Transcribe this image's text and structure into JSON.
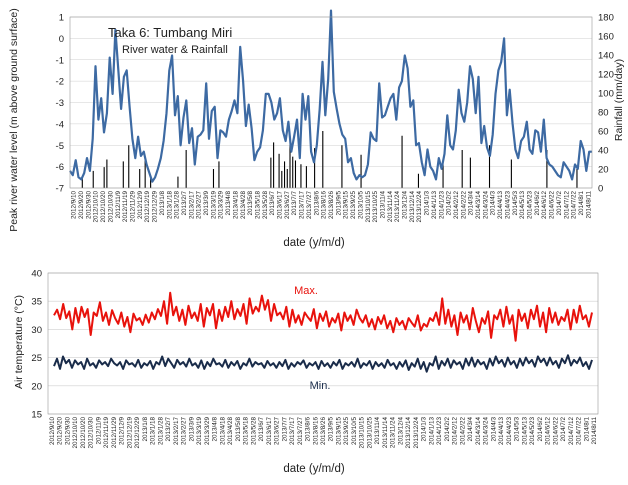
{
  "charts": {
    "top": {
      "title": "Taka 6: Tumbang Miri",
      "subtitle": "River water & Rainfall",
      "ylabel_left": "Peak river water level (m above  ground surface)",
      "ylabel_right": "Rainfall (mm/day)",
      "xlabel": "date (y/m/d)"
    },
    "bottom": {
      "ylabel": "Air temperature    (°C)",
      "xlabel": "date (y/m/d)",
      "max_label": "Max.",
      "min_label": "Min."
    }
  },
  "colors": {
    "water": "#3d6aa3",
    "rain": "#000000",
    "max": "#e8120c",
    "min": "#1a2c4a",
    "grid": "#cfcfcf"
  },
  "chart_data": [
    {
      "type": "line",
      "title": "Taka 6: Tumbang Miri",
      "subtitle": "River water & Rainfall",
      "xlabel": "date (y/m/d)",
      "ylabel": "Peak river water level (m above  ground surface)",
      "y2label": "Rainfall (mm/day)",
      "ylim": [
        -7,
        1
      ],
      "y2lim": [
        0,
        180
      ],
      "yticks": [
        -7,
        -6,
        -5,
        -4,
        -3,
        -2,
        -1,
        0,
        1
      ],
      "y2ticks": [
        0,
        20,
        40,
        60,
        80,
        100,
        120,
        140,
        160,
        180
      ],
      "grid": true,
      "x_tick_labels": [
        "2012/9/10",
        "2012/9/20",
        "2012/9/30",
        "2012/10/10",
        "2012/10/20",
        "2012/10/30",
        "2012/11/9",
        "2012/11/19",
        "2012/11/29",
        "2012/12/9",
        "2012/12/19",
        "2012/12/29",
        "2013/1/8",
        "2013/1/18",
        "2013/1/28",
        "2013/2/7",
        "2013/2/17",
        "2013/2/27",
        "2013/3/9",
        "2013/3/19",
        "2013/3/29",
        "2013/4/8",
        "2013/4/18",
        "2013/4/28",
        "2013/5/8",
        "2013/5/18",
        "2013/5/28",
        "2013/6/7",
        "2013/6/17",
        "2013/6/27",
        "2013/7/7",
        "2013/7/17",
        "2013/7/27",
        "2013/8/6",
        "2013/8/16",
        "2013/8/26",
        "2013/9/5",
        "2013/9/15",
        "2013/9/25",
        "2013/10/5",
        "2013/10/15",
        "2013/10/25",
        "2013/11/4",
        "2013/11/14",
        "2013/11/24",
        "2013/12/4",
        "2013/12/14",
        "2013/12/24",
        "2014/1/3",
        "2014/1/13",
        "2014/1/23",
        "2014/2/2",
        "2014/2/12",
        "2014/2/22",
        "2014/3/4",
        "2014/3/14",
        "2014/3/24",
        "2014/4/3",
        "2014/4/13",
        "2014/4/23",
        "2014/5/3",
        "2014/5/13",
        "2014/5/23",
        "2014/6/2",
        "2014/6/12",
        "2014/6/22",
        "2014/7/2",
        "2014/7/12",
        "2014/7/22",
        "2014/8/1",
        "2014/8/11"
      ],
      "series": [
        {
          "name": "river water level",
          "axis": "left",
          "values": [
            -6.2,
            -6.4,
            -5.7,
            -6.5,
            -6.6,
            -6.3,
            -5.6,
            -6.2,
            -4.7,
            -1.3,
            -3.8,
            -2.8,
            -4.4,
            -3.5,
            -0.9,
            -2.6,
            0.4,
            -1.4,
            -3.3,
            -1.8,
            -1.5,
            -3.2,
            -4.7,
            -5.6,
            -4.6,
            -5.5,
            -5.3,
            -5.9,
            -6.3,
            -6.7,
            -6.5,
            -6.1,
            -5.6,
            -4.8,
            -3.5,
            -1.5,
            -0.8,
            -3.6,
            -2.7,
            -5.0,
            -3.7,
            -2.9,
            -4.9,
            -4.2,
            -5.9,
            -4.6,
            -4.5,
            -4.3,
            -2.1,
            -4.7,
            -3.4,
            -3.2,
            -5.6,
            -4.3,
            -4.4,
            -4.6,
            -3.8,
            -3.4,
            -2.9,
            -3.5,
            -0.4,
            -2.0,
            -4.1,
            -3.1,
            -4.2,
            -5.7,
            -5.3,
            -5.1,
            -4.3,
            -2.6,
            -2.6,
            -3.0,
            -3.8,
            -3.5,
            -2.8,
            -4.3,
            -4.8,
            -3.9,
            -5.3,
            -4.6,
            -3.8,
            -5.6,
            -2.6,
            -3.8,
            -2.7,
            -5.3,
            -5.8,
            -5.0,
            -3.3,
            -1.1,
            -3.6,
            -1.9,
            1.3,
            -2.5,
            -3.3,
            -4.0,
            -4.5,
            -4.7,
            -5.8,
            -5.6,
            -6.3,
            -6.6,
            -6.4,
            -6.5,
            -6.4,
            -5.9,
            -4.4,
            -4.7,
            -4.8,
            -2.1,
            -3.7,
            -3.6,
            -3.2,
            -2.8,
            -2.6,
            -3.8,
            -2.3,
            -2.0,
            -0.8,
            -1.4,
            -3.2,
            -2.9,
            -5.0,
            -4.9,
            -5.8,
            -6.4,
            -5.2,
            -6.0,
            -6.2,
            -6.6,
            -5.6,
            -6.1,
            -5.4,
            -3.6,
            -5.0,
            -5.2,
            -4.3,
            -2.4,
            -3.5,
            -3.9,
            -3.0,
            -1.3,
            -1.9,
            -3.5,
            -1.8,
            -4.9,
            -4.1,
            -5.1,
            -5.5,
            -4.5,
            -2.6,
            -1.5,
            -1.1,
            0.0,
            -3.6,
            -2.4,
            -4.0,
            -5.2,
            -5.6,
            -4.8,
            -4.6,
            -3.9,
            -5.2,
            -5.4,
            -4.3,
            -4.4,
            -5.3,
            -3.8,
            -5.6,
            -5.9,
            -6.0,
            -6.2,
            -6.4,
            -6.5,
            -5.8,
            -6.0,
            -6.2,
            -6.6,
            -5.9,
            -6.1,
            -4.8,
            -5.2,
            -6.2,
            -5.3,
            -5.3
          ]
        },
        {
          "name": "rainfall",
          "axis": "right",
          "type": "bar",
          "values": [
            0,
            0,
            0,
            0,
            12,
            0,
            0,
            0,
            18,
            0,
            0,
            0,
            22,
            30,
            0,
            0,
            0,
            0,
            0,
            28,
            0,
            45,
            0,
            0,
            0,
            20,
            0,
            30,
            0,
            12,
            0,
            0,
            0,
            0,
            0,
            0,
            0,
            0,
            0,
            12,
            0,
            0,
            40,
            0,
            0,
            0,
            0,
            0,
            0,
            0,
            0,
            0,
            20,
            0,
            28,
            0,
            0,
            0,
            0,
            0,
            0,
            0,
            0,
            0,
            0,
            0,
            0,
            0,
            0,
            0,
            0,
            0,
            0,
            32,
            48,
            0,
            36,
            18,
            28,
            20,
            55,
            33,
            29,
            0,
            25,
            0,
            23,
            0,
            0,
            42,
            0,
            0,
            60,
            0,
            0,
            0,
            0,
            0,
            0,
            45,
            0,
            0,
            0,
            0,
            0,
            0,
            35,
            0,
            0,
            0,
            0,
            0,
            0,
            0,
            0,
            0,
            0,
            0,
            0,
            0,
            0,
            55,
            0,
            0,
            0,
            0,
            0,
            15,
            0,
            0,
            0,
            0,
            0,
            0,
            0,
            0,
            25,
            0,
            0,
            0,
            0,
            0,
            0,
            40,
            0,
            0,
            32,
            0,
            0,
            0,
            0,
            0,
            0,
            45,
            0,
            0,
            0,
            0,
            0,
            0,
            0,
            30,
            0,
            0,
            0,
            0,
            0,
            0,
            0,
            0,
            0,
            0,
            0,
            0,
            40,
            0,
            0,
            0,
            0,
            0,
            0,
            0,
            0,
            0,
            0,
            20,
            0,
            0,
            0,
            0,
            0
          ]
        }
      ]
    },
    {
      "type": "line",
      "xlabel": "date (y/m/d)",
      "ylabel": "Air temperature    (°C)",
      "ylim": [
        15,
        40
      ],
      "yticks": [
        15,
        20,
        25,
        30,
        35,
        40
      ],
      "grid": true,
      "x_tick_labels": [
        "2012/9/10",
        "2012/9/20",
        "2012/9/30",
        "2012/10/10",
        "2012/10/20",
        "2012/10/30",
        "2012/11/9",
        "2012/11/19",
        "2012/11/29",
        "2012/12/9",
        "2012/12/19",
        "2012/12/29",
        "2013/1/8",
        "2013/1/18",
        "2013/1/28",
        "2013/2/7",
        "2013/2/17",
        "2013/2/27",
        "2013/3/9",
        "2013/3/19",
        "2013/3/29",
        "2013/4/8",
        "2013/4/18",
        "2013/4/28",
        "2013/5/8",
        "2013/5/18",
        "2013/5/28",
        "2013/6/7",
        "2013/6/17",
        "2013/6/27",
        "2013/7/7",
        "2013/7/17",
        "2013/7/27",
        "2013/8/6",
        "2013/8/16",
        "2013/8/26",
        "2013/9/5",
        "2013/9/15",
        "2013/9/25",
        "2013/10/5",
        "2013/10/15",
        "2013/10/25",
        "2013/11/4",
        "2013/11/14",
        "2013/11/24",
        "2013/12/4",
        "2013/12/14",
        "2013/12/24",
        "2014/1/3",
        "2014/1/13",
        "2014/1/23",
        "2014/2/2",
        "2014/2/12",
        "2014/2/22",
        "2014/3/4",
        "2014/3/14",
        "2014/3/24",
        "2014/4/3",
        "2014/4/13",
        "2014/4/23",
        "2014/5/3",
        "2014/5/13",
        "2014/5/23",
        "2014/6/2",
        "2014/6/12",
        "2014/6/22",
        "2014/7/2",
        "2014/7/12",
        "2014/7/22",
        "2014/8/1",
        "2014/8/11"
      ],
      "series": [
        {
          "name": "Max.",
          "values": [
            32.5,
            33.5,
            31.8,
            34.5,
            32.0,
            33.2,
            30.0,
            33.8,
            31.2,
            34.0,
            32.2,
            33.6,
            29.0,
            33.0,
            32.4,
            34.8,
            31.5,
            33.0,
            30.8,
            33.4,
            32.0,
            31.0,
            33.0,
            30.5,
            32.2,
            29.5,
            32.8,
            31.6,
            32.0,
            30.8,
            32.6,
            31.2,
            33.0,
            31.8,
            33.6,
            32.4,
            35.0,
            31.0,
            36.5,
            32.5,
            34.0,
            31.5,
            33.5,
            30.8,
            34.2,
            32.0,
            33.0,
            31.5,
            34.5,
            30.5,
            33.8,
            32.5,
            34.5,
            30.2,
            33.5,
            31.5,
            34.0,
            32.2,
            35.0,
            31.8,
            33.6,
            32.4,
            34.5,
            31.0,
            35.5,
            32.8,
            34.0,
            33.2,
            36.0,
            33.5,
            35.2,
            31.5,
            34.5,
            32.5,
            33.0,
            31.8,
            34.0,
            30.5,
            33.5,
            31.2,
            32.5,
            30.8,
            33.0,
            32.2,
            31.5,
            33.6,
            30.2,
            32.8,
            31.5,
            33.2,
            30.5,
            32.0,
            31.2,
            32.8,
            29.8,
            33.0,
            31.5,
            32.5,
            30.8,
            33.5,
            32.0,
            31.2,
            32.5,
            30.5,
            31.8,
            30.0,
            32.2,
            31.0,
            32.5,
            30.2,
            31.5,
            29.5,
            32.0,
            30.8,
            31.5,
            30.0,
            32.0,
            31.2,
            30.5,
            32.5,
            29.8,
            31.0,
            30.5,
            32.0,
            31.5,
            33.0,
            30.8,
            35.5,
            31.0,
            33.5,
            30.5,
            32.5,
            29.0,
            33.0,
            31.2,
            32.5,
            30.0,
            33.8,
            31.5,
            29.5,
            32.0,
            31.0,
            33.2,
            28.5,
            32.5,
            31.8,
            33.5,
            30.5,
            34.0,
            31.0,
            32.5,
            28.0,
            33.5,
            31.5,
            32.8,
            30.2,
            33.5,
            31.8,
            34.2,
            30.5,
            33.0,
            29.5,
            33.8,
            31.2,
            33.0,
            30.8,
            32.2,
            31.5,
            33.5,
            30.0,
            33.5,
            31.2,
            34.2,
            31.8,
            32.5,
            30.5,
            33.0
          ]
        },
        {
          "name": "Min.",
          "values": [
            23.5,
            24.8,
            23.0,
            25.2,
            24.0,
            24.6,
            23.2,
            24.5,
            23.8,
            24.2,
            23.0,
            24.8,
            23.6,
            24.0,
            23.2,
            24.5,
            23.8,
            24.2,
            23.5,
            24.8,
            24.0,
            23.6,
            24.2,
            23.0,
            24.5,
            23.8,
            24.0,
            23.4,
            24.6,
            23.2,
            24.0,
            23.6,
            24.4,
            23.0,
            24.2,
            23.8,
            25.2,
            23.5,
            24.8,
            24.0,
            23.2,
            24.6,
            23.8,
            24.2,
            23.4,
            24.8,
            23.6,
            24.0,
            23.2,
            24.5,
            23.0,
            24.2,
            23.5,
            24.8,
            23.8,
            24.0,
            23.4,
            24.6,
            23.2,
            24.2,
            23.6,
            24.4,
            23.0,
            24.0,
            23.6,
            24.8,
            23.4,
            24.2,
            23.8,
            24.0,
            23.2,
            24.4,
            23.6,
            24.0,
            23.2,
            24.2,
            23.5,
            24.6,
            23.0,
            24.0,
            23.4,
            24.2,
            23.8,
            24.5,
            23.2,
            24.0,
            23.6,
            24.2,
            23.0,
            24.4,
            23.5,
            24.0,
            23.2,
            24.2,
            23.6,
            24.6,
            23.0,
            24.0,
            23.6,
            24.2,
            23.4,
            24.8,
            23.2,
            24.0,
            23.6,
            24.4,
            23.0,
            24.2,
            23.5,
            24.0,
            23.2,
            24.6,
            23.6,
            24.0,
            23.0,
            24.2,
            23.4,
            24.5,
            22.8,
            24.0,
            23.4,
            24.8,
            23.0,
            24.2,
            22.5,
            24.0,
            23.6,
            25.2,
            23.0,
            24.4,
            23.6,
            24.8,
            23.2,
            24.5,
            23.8,
            24.2,
            23.0,
            24.8,
            23.6,
            25.0,
            23.4,
            24.6,
            23.8,
            24.2,
            23.0,
            24.8,
            23.6,
            25.2,
            24.0,
            24.6,
            23.4,
            25.0,
            23.8,
            24.4,
            23.2,
            24.8,
            23.6,
            25.0,
            24.0,
            24.6,
            23.4,
            25.2,
            24.2,
            24.8,
            23.6,
            25.0,
            23.8,
            24.4,
            23.2,
            24.8,
            24.0,
            25.4,
            23.6,
            24.6,
            24.0,
            25.0,
            23.5,
            24.2,
            23.0,
            24.6
          ]
        }
      ]
    }
  ]
}
